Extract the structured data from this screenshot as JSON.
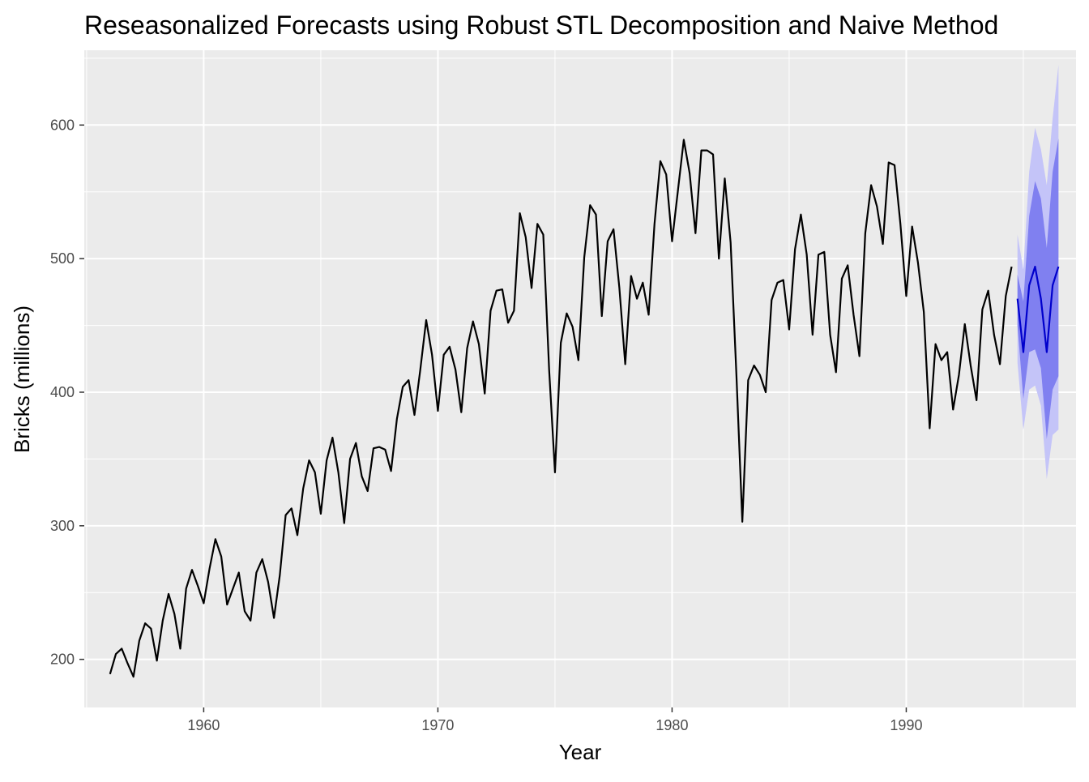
{
  "chart_data": {
    "type": "line",
    "title": "Reseasonalized Forecasts using Robust STL Decomposition and Naive Method",
    "xlabel": "Year",
    "ylabel": "Bricks (millions)",
    "xlim": [
      1954.9,
      1997.25
    ],
    "ylim": [
      164,
      656
    ],
    "x_ticks": [
      1960,
      1970,
      1980,
      1990
    ],
    "x_tick_labels": [
      "1960",
      "1970",
      "1980",
      "1990"
    ],
    "y_ticks": [
      200,
      300,
      400,
      500,
      600
    ],
    "y_tick_labels": [
      "200",
      "300",
      "400",
      "500",
      "600"
    ],
    "grid": true,
    "legend": "none",
    "colors": {
      "panel": "#ebebeb",
      "grid": "#ffffff",
      "history": "#000000",
      "forecast": "#0000cc",
      "interval_80": "#8080f0",
      "interval_95": "#c4c4f8"
    },
    "history": {
      "name": "",
      "start": 1956.0,
      "frequency": 4,
      "values": [
        189,
        204,
        208,
        197,
        187,
        214,
        227,
        223,
        199,
        229,
        249,
        234,
        208,
        253,
        267,
        255,
        242,
        268,
        290,
        277,
        241,
        253,
        265,
        236,
        229,
        265,
        275,
        258,
        231,
        263,
        308,
        313,
        293,
        328,
        349,
        340,
        309,
        349,
        366,
        340,
        302,
        350,
        362,
        337,
        326,
        358,
        359,
        357,
        341,
        380,
        404,
        409,
        383,
        417,
        454,
        428,
        386,
        428,
        434,
        417,
        385,
        433,
        453,
        436,
        399,
        461,
        476,
        477,
        452,
        461,
        534,
        516,
        478,
        526,
        518,
        417,
        340,
        437,
        459,
        449,
        424,
        501,
        540,
        533,
        457,
        513,
        522,
        478,
        421,
        487,
        470,
        482,
        458,
        526,
        573,
        563,
        513,
        551,
        589,
        564,
        519,
        581,
        581,
        578,
        500,
        560,
        512,
        412,
        303,
        409,
        420,
        413,
        400,
        469,
        482,
        484,
        447,
        507,
        533,
        503,
        443,
        503,
        505,
        443,
        415,
        485,
        495,
        458,
        427,
        519,
        555,
        539,
        511,
        572,
        570,
        526,
        472,
        524,
        497,
        460,
        373,
        436,
        424,
        430,
        387,
        413,
        451,
        420,
        394,
        462,
        476,
        443,
        421,
        472,
        494
      ]
    },
    "forecast": {
      "start": 1994.75,
      "frequency": 4,
      "mean": [
        470,
        430,
        480,
        494,
        470,
        430,
        480,
        494
      ],
      "lo80": [
        450,
        395,
        430,
        432,
        418,
        365,
        402,
        412
      ],
      "hi80": [
        488,
        468,
        532,
        558,
        545,
        508,
        565,
        590
      ],
      "lo95": [
        422,
        372,
        402,
        405,
        390,
        335,
        368,
        372
      ],
      "hi95": [
        518,
        492,
        565,
        598,
        582,
        555,
        605,
        645
      ]
    }
  }
}
